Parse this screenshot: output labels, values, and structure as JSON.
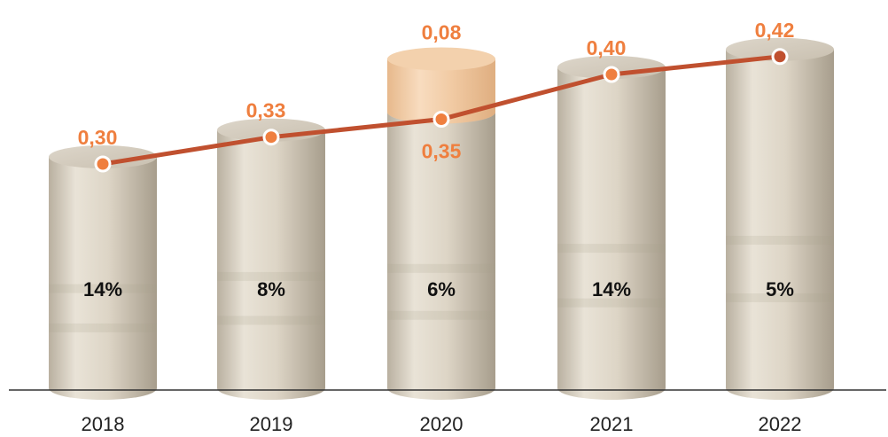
{
  "chart_data": {
    "type": "bar",
    "categories": [
      "2018",
      "2019",
      "2020",
      "2021",
      "2022"
    ],
    "series": [
      {
        "values": [
          0.3,
          0.33,
          0.35,
          0.4,
          0.42
        ]
      },
      {
        "values": [
          null,
          null,
          0.08,
          null,
          null
        ]
      },
      {
        "values": [
          "14%",
          "8%",
          "6%",
          "14%",
          "5%"
        ]
      }
    ],
    "value_labels": [
      "0,30",
      "0,33",
      "0,35",
      "0,40",
      "0,42"
    ],
    "extra_labels": [
      null,
      null,
      "0,08",
      null,
      null
    ],
    "percent_labels": [
      "14%",
      "8%",
      "6%",
      "14%",
      "5%"
    ],
    "ylim": [
      0,
      0.5
    ],
    "grid": false,
    "legend": "none",
    "colors": {
      "accent": "#ef7f3f",
      "line": "#c0502f",
      "cylinder": "#d9d1c2",
      "cylinder_highlight": "#f0c9a3"
    }
  }
}
